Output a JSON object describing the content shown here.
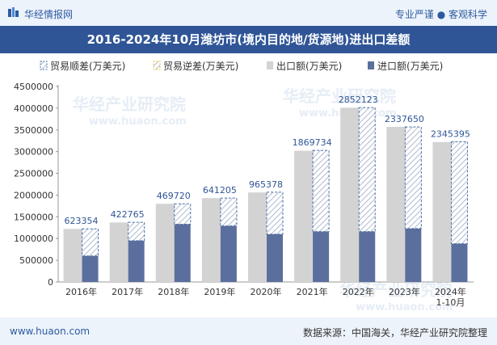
{
  "header": {
    "brand": "华经情报网",
    "slogan_left": "专业严谨",
    "slogan_right": "客观科学",
    "title": "2016-2024年10月潍坊市(境内目的地/货源地)进出口差额"
  },
  "footer": {
    "site": "www.huaon.com",
    "source": "数据来源：中国海关，华经产业研究院整理"
  },
  "watermark": "华经产业研究院",
  "watermark_url": "www.huaon.com",
  "colors": {
    "export": "#d3d3d3",
    "import": "#5b6f9e",
    "surplus_border": "#4e6fa8",
    "title_bg": "#2f5597"
  },
  "chart_data": {
    "type": "bar",
    "categories": [
      "2016年",
      "2017年",
      "2018年",
      "2019年",
      "2020年",
      "2021年",
      "2022年",
      "2023年",
      "2024年\n1-10月"
    ],
    "ylim": [
      0,
      4500000
    ],
    "yticks": [
      0,
      500000,
      1000000,
      1500000,
      2000000,
      2500000,
      3000000,
      3500000,
      4000000,
      4500000
    ],
    "legend_position": "top",
    "series": [
      {
        "name": "贸易顺差(万美元)",
        "values": [
          623354,
          422765,
          469720,
          641205,
          965378,
          1869734,
          2852123,
          2337650,
          2345395
        ]
      },
      {
        "name": "贸易逆差(万美元)",
        "values": [
          0,
          0,
          0,
          0,
          0,
          0,
          0,
          0,
          0
        ]
      },
      {
        "name": "出口额(万美元)",
        "values": [
          1220000,
          1370000,
          1800000,
          1930000,
          2060000,
          3020000,
          4010000,
          3570000,
          3220000
        ]
      },
      {
        "name": "进口额(万美元)",
        "values": [
          600000,
          950000,
          1330000,
          1290000,
          1100000,
          1160000,
          1160000,
          1230000,
          880000
        ]
      }
    ],
    "data_labels": [
      "623354",
      "422765",
      "469720",
      "641205",
      "965378",
      "1869734",
      "2852123",
      "2337650",
      "2345395"
    ]
  }
}
